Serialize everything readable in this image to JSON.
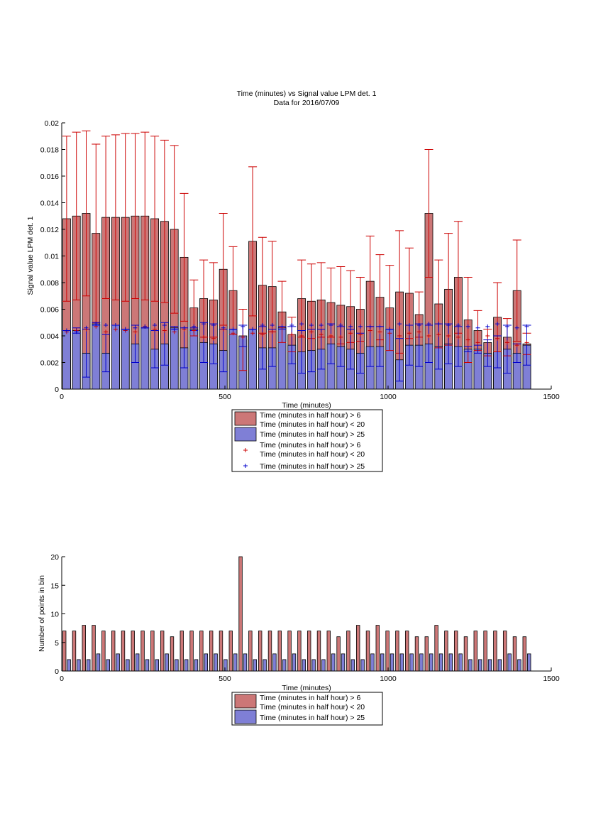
{
  "colors": {
    "red_face": "#cc7777",
    "blue_face": "#7f7fd6",
    "red_line": "#cc0000",
    "blue_line": "#0000cc"
  },
  "chart_data": [
    {
      "type": "bar",
      "title": "Time (minutes) vs Signal value LPM det. 1",
      "subtitle": "Data for 2016/07/09",
      "xlabel": "Time (minutes)",
      "ylabel": "Signal value LPM det. 1",
      "xlim": [
        0,
        1500
      ],
      "ylim": [
        0,
        0.02
      ],
      "xticks": [
        "0",
        "500",
        "1000",
        "1500"
      ],
      "yticks": [
        "0",
        "0.002",
        "0.004",
        "0.006",
        "0.008",
        "0.01",
        "0.012",
        "0.014",
        "0.016",
        "0.018",
        "0.02"
      ],
      "legend": {
        "placement": "below axes",
        "entries": [
          [
            "Time (minutes in half hour) > 6",
            "Time (minutes in half hour) < 20"
          ],
          [
            "Time (minutes in half hour) > 25"
          ],
          [
            "Time (minutes in half hour) > 6",
            "Time (minutes in half hour) < 20"
          ],
          [
            "Time (minutes in half hour) > 25"
          ]
        ]
      },
      "x": [
        15,
        45,
        75,
        105,
        135,
        165,
        195,
        225,
        255,
        285,
        315,
        345,
        375,
        405,
        435,
        465,
        495,
        525,
        555,
        585,
        615,
        645,
        675,
        705,
        735,
        765,
        795,
        825,
        855,
        885,
        915,
        945,
        975,
        1005,
        1035,
        1065,
        1095,
        1125,
        1155,
        1185,
        1215,
        1245,
        1275,
        1305,
        1335,
        1365,
        1395,
        1425
      ],
      "series": [
        {
          "name": "Time (minutes in half hour) > 6 / Time (minutes in half hour) < 20",
          "values": [
            0.0128,
            0.013,
            0.0132,
            0.0117,
            0.0129,
            0.0129,
            0.0129,
            0.013,
            0.013,
            0.0128,
            0.0126,
            0.012,
            0.0099,
            0.0061,
            0.0068,
            0.0067,
            0.009,
            0.0074,
            0.0037,
            0.0111,
            0.0078,
            0.0077,
            0.0058,
            0.0041,
            0.0068,
            0.0066,
            0.0067,
            0.0065,
            0.0063,
            0.0062,
            0.006,
            0.0081,
            0.0069,
            0.0061,
            0.0073,
            0.0072,
            0.0056,
            0.0132,
            0.0064,
            0.0075,
            0.0084,
            0.0052,
            0.0044,
            0.0035,
            0.0054,
            0.0039,
            0.0074,
            0.0034
          ],
          "err": [
            0.0062,
            0.0063,
            0.0062,
            0.0067,
            0.0061,
            0.0062,
            0.0063,
            0.0062,
            0.0063,
            0.0062,
            0.0061,
            0.0063,
            0.0048,
            0.0021,
            0.0029,
            0.0028,
            0.0042,
            0.0033,
            0.0023,
            0.0056,
            0.0036,
            0.0034,
            0.0023,
            0.0013,
            0.0029,
            0.0028,
            0.0028,
            0.0026,
            0.0029,
            0.0027,
            0.0024,
            0.0034,
            0.0032,
            0.0032,
            0.0046,
            0.0034,
            0.0017,
            0.0048,
            0.0033,
            0.0042,
            0.0042,
            0.0032,
            0.0015,
            0.001,
            0.0026,
            0.0014,
            0.0038,
            0.0008
          ],
          "markers": [
            0.0043,
            0.0044,
            0.0045,
            0.0047,
            0.0043,
            0.0045,
            0.0044,
            0.0043,
            0.0047,
            0.0045,
            0.0044,
            0.0043,
            0.0045,
            0.0044,
            0.0039,
            0.0038,
            0.0045,
            0.0042,
            0.0039,
            0.0042,
            0.0041,
            0.0043,
            0.0046,
            0.0041,
            0.004,
            0.0043,
            0.0041,
            0.004,
            0.0039,
            0.0042,
            0.0041,
            0.0044,
            0.0043,
            0.0042,
            0.004,
            0.0042,
            0.0043,
            0.004,
            0.0041,
            0.004,
            0.0039,
            0.0037,
            0.0035,
            0.004,
            0.0038,
            0.0035,
            0.0033,
            0.0035
          ]
        },
        {
          "name": "Time (minutes in half hour) > 25",
          "values": [
            0.0044,
            0.0044,
            0.0027,
            0.0049,
            0.0027,
            0.0048,
            0.0045,
            0.0034,
            0.0046,
            0.003,
            0.0034,
            0.0046,
            0.0031,
            0.0045,
            0.0035,
            0.0034,
            0.0029,
            0.0045,
            0.004,
            0.0045,
            0.0031,
            0.0031,
            0.0046,
            0.0033,
            0.0028,
            0.0029,
            0.003,
            0.0034,
            0.0032,
            0.003,
            0.0027,
            0.0032,
            0.0032,
            0.0045,
            0.0022,
            0.0033,
            0.0033,
            0.0034,
            0.0032,
            0.0034,
            0.0032,
            0.003,
            0.003,
            0.0027,
            0.0028,
            0.003,
            0.0027,
            0.0033
          ],
          "err": [
            0.0,
            0.0002,
            0.0018,
            0.0001,
            0.0014,
            0.0,
            0.0,
            0.0014,
            0.0,
            0.0014,
            0.0016,
            0.0001,
            0.0015,
            0.0001,
            0.0015,
            0.0015,
            0.0016,
            0.0,
            0.0008,
            0.0,
            0.0016,
            0.0014,
            0.0001,
            0.0014,
            0.0016,
            0.0016,
            0.0015,
            0.0015,
            0.0015,
            0.0015,
            0.0015,
            0.0015,
            0.0015,
            0.0,
            0.0016,
            0.0015,
            0.0016,
            0.0014,
            0.0017,
            0.0015,
            0.0015,
            0.0002,
            0.0003,
            0.001,
            0.0012,
            0.0018,
            0.0007,
            0.0015
          ],
          "markers": [
            0.0044,
            0.0043,
            0.0046,
            0.0049,
            0.0048,
            0.0048,
            0.0045,
            0.0046,
            0.0047,
            0.0048,
            0.0048,
            0.0045,
            0.0046,
            0.0047,
            0.0049,
            0.0048,
            0.0046,
            0.0045,
            0.0047,
            0.0045,
            0.0048,
            0.0048,
            0.0047,
            0.0048,
            0.0049,
            0.0048,
            0.0048,
            0.0048,
            0.0048,
            0.0047,
            0.0047,
            0.0047,
            0.0047,
            0.0045,
            0.0049,
            0.0048,
            0.0048,
            0.0049,
            0.0049,
            0.0048,
            0.0048,
            0.0047,
            0.0046,
            0.0047,
            0.0049,
            0.0047,
            0.0046,
            0.0047
          ]
        }
      ]
    },
    {
      "type": "bar",
      "xlabel": "Time (minutes)",
      "ylabel": "Number of points in bin",
      "xlim": [
        0,
        1500
      ],
      "ylim": [
        0,
        20
      ],
      "xticks": [
        "0",
        "500",
        "1000",
        "1500"
      ],
      "yticks": [
        "0",
        "5",
        "10",
        "15",
        "20"
      ],
      "legend": {
        "placement": "below axes",
        "entries": [
          [
            "Time (minutes in half hour) > 6",
            "Time (minutes in half hour) < 20"
          ],
          [
            "Time (minutes in half hour) > 25"
          ]
        ]
      },
      "x": [
        15,
        45,
        75,
        105,
        135,
        165,
        195,
        225,
        255,
        285,
        315,
        345,
        375,
        405,
        435,
        465,
        495,
        525,
        555,
        585,
        615,
        645,
        675,
        705,
        735,
        765,
        795,
        825,
        855,
        885,
        915,
        945,
        975,
        1005,
        1035,
        1065,
        1095,
        1125,
        1155,
        1185,
        1215,
        1245,
        1275,
        1305,
        1335,
        1365,
        1395,
        1425
      ],
      "series": [
        {
          "name": "Time (minutes in half hour) > 6 / Time (minutes in half hour) < 20",
          "values": [
            7,
            7,
            8,
            8,
            7,
            7,
            7,
            7,
            7,
            7,
            7,
            6,
            7,
            7,
            7,
            7,
            7,
            7,
            20,
            7,
            7,
            7,
            7,
            7,
            7,
            7,
            7,
            7,
            6,
            7,
            8,
            7,
            8,
            7,
            7,
            7,
            6,
            6,
            8,
            7,
            7,
            6,
            7,
            7,
            7,
            7,
            6,
            6
          ]
        },
        {
          "name": "Time (minutes in half hour) > 25",
          "values": [
            2,
            2,
            2,
            3,
            2,
            3,
            2,
            3,
            2,
            2,
            3,
            2,
            2,
            2,
            3,
            3,
            2,
            3,
            3,
            2,
            2,
            3,
            2,
            3,
            2,
            2,
            2,
            3,
            3,
            2,
            2,
            3,
            3,
            3,
            3,
            3,
            3,
            3,
            3,
            3,
            3,
            2,
            2,
            2,
            2,
            3,
            2,
            3
          ]
        }
      ]
    }
  ]
}
